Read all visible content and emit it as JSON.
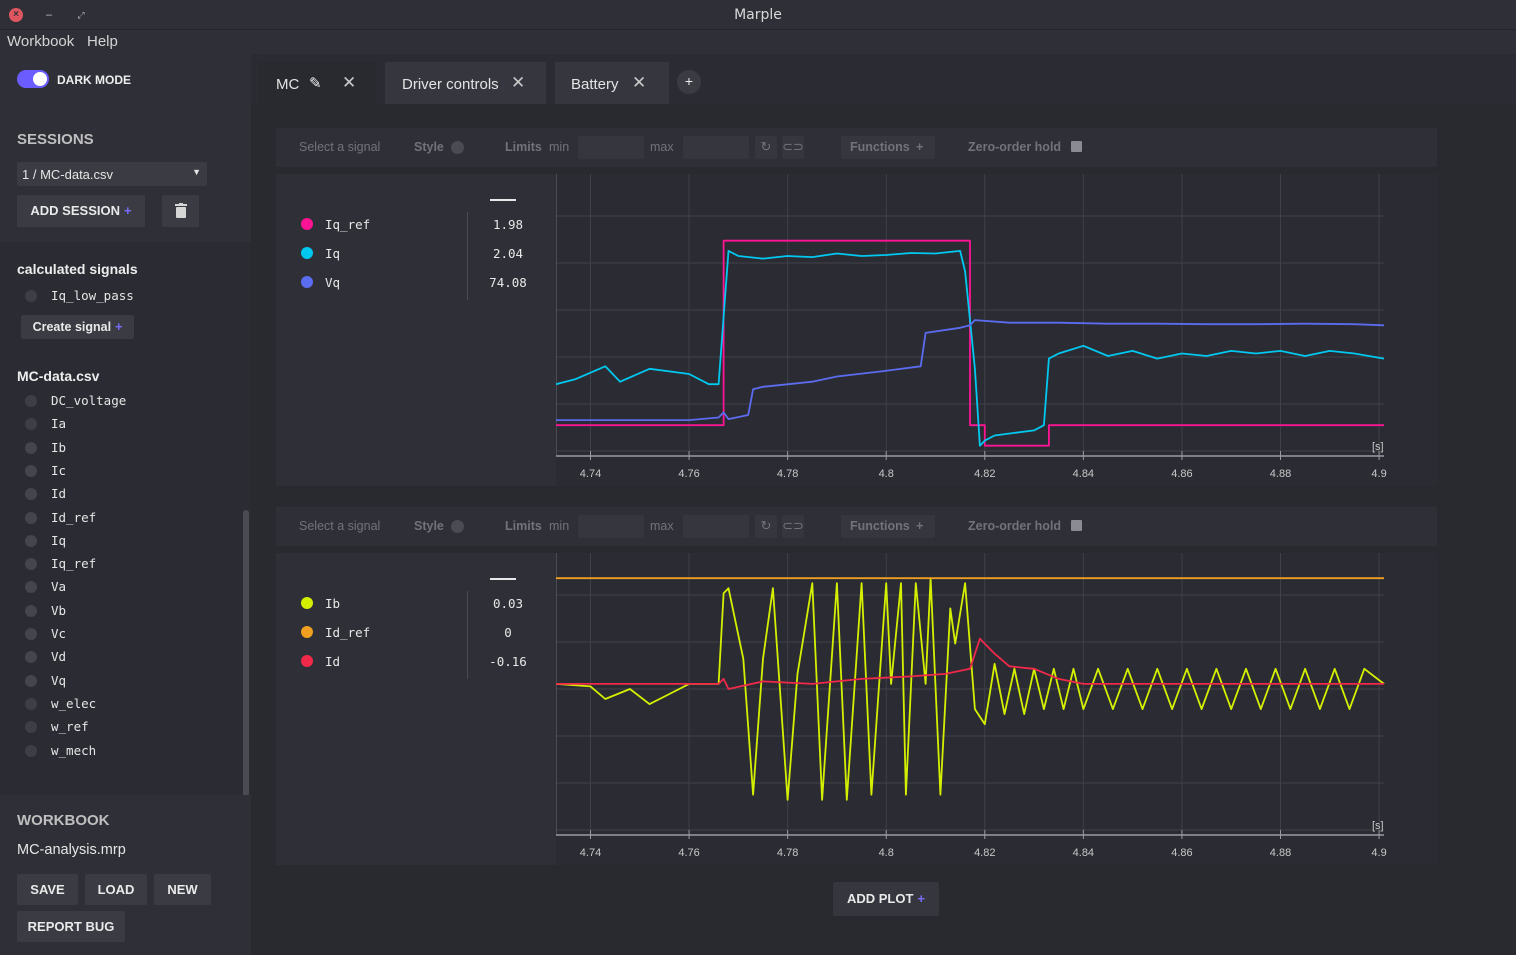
{
  "window": {
    "title": "Marple"
  },
  "menu": {
    "workbook": "Workbook",
    "help": "Help"
  },
  "sidebar": {
    "dark_mode_label": "DARK MODE",
    "sessions_title": "SESSIONS",
    "session_selected": "1 / MC-data.csv",
    "add_session": "ADD SESSION",
    "calculated_title": "calculated signals",
    "calculated_signals": [
      "Iq_low_pass"
    ],
    "create_signal": "Create signal",
    "file_title": "MC-data.csv",
    "signals": [
      "DC_voltage",
      "Ia",
      "Ib",
      "Ic",
      "Id",
      "Id_ref",
      "Iq",
      "Iq_ref",
      "Va",
      "Vb",
      "Vc",
      "Vd",
      "Vq",
      "w_elec",
      "w_ref",
      "w_mech"
    ],
    "workbook_title": "WORKBOOK",
    "workbook_file": "MC-analysis.mrp",
    "save": "SAVE",
    "load": "LOAD",
    "new": "NEW",
    "report_bug": "REPORT BUG"
  },
  "tabs": [
    {
      "label": "MC",
      "active": true
    },
    {
      "label": "Driver controls",
      "active": false
    },
    {
      "label": "Battery",
      "active": false
    }
  ],
  "toolbar": {
    "select_signal": "Select a signal",
    "style": "Style",
    "limits": "Limits",
    "min": "min",
    "max": "max",
    "functions": "Functions",
    "zoh": "Zero-order hold"
  },
  "add_plot": "ADD PLOT",
  "chart_data": [
    {
      "type": "line",
      "xlabel": "[s]",
      "xlim": [
        4.733,
        4.901
      ],
      "xticks": [
        "4.74",
        "4.76",
        "4.78",
        "4.8",
        "4.82",
        "4.84",
        "4.86",
        "4.88",
        "4.9"
      ],
      "ylim": [
        -2.1,
        3.4
      ],
      "series": [
        {
          "name": "Iq_ref",
          "color": "#ff1493",
          "current_value": "1.98",
          "x": [
            4.733,
            4.767,
            4.767,
            4.817,
            4.817,
            4.82,
            4.82,
            4.833,
            4.833,
            4.901
          ],
          "y": [
            -1.5,
            -1.5,
            2.1,
            2.1,
            -1.5,
            -1.5,
            -1.9,
            -1.9,
            -1.5,
            -1.5
          ]
        },
        {
          "name": "Iq",
          "color": "#00c8f0",
          "current_value": "2.04",
          "x": [
            4.733,
            4.737,
            4.743,
            4.746,
            4.752,
            4.756,
            4.76,
            4.764,
            4.766,
            4.768,
            4.77,
            4.775,
            4.78,
            4.785,
            4.79,
            4.795,
            4.8,
            4.805,
            4.81,
            4.815,
            4.816,
            4.818,
            4.819,
            4.82,
            4.822,
            4.826,
            4.83,
            4.832,
            4.833,
            4.835,
            4.84,
            4.845,
            4.85,
            4.855,
            4.86,
            4.865,
            4.87,
            4.875,
            4.88,
            4.885,
            4.89,
            4.895,
            4.901
          ],
          "y": [
            -0.7,
            -0.6,
            -0.35,
            -0.65,
            -0.4,
            -0.45,
            -0.5,
            -0.7,
            -0.7,
            1.9,
            1.8,
            1.75,
            1.8,
            1.78,
            1.85,
            1.8,
            1.82,
            1.86,
            1.85,
            1.9,
            1.5,
            -0.4,
            -1.9,
            -1.8,
            -1.7,
            -1.65,
            -1.6,
            -1.5,
            -0.2,
            -0.1,
            0.05,
            -0.15,
            -0.05,
            -0.2,
            -0.1,
            -0.15,
            -0.05,
            -0.1,
            -0.05,
            -0.15,
            -0.05,
            -0.1,
            -0.2
          ]
        },
        {
          "name": "Vq",
          "color": "#5b6cf0",
          "current_value": "74.08",
          "x": [
            4.733,
            4.746,
            4.76,
            4.766,
            4.767,
            4.768,
            4.772,
            4.773,
            4.775,
            4.785,
            4.79,
            4.799,
            4.807,
            4.808,
            4.815,
            4.817,
            4.818,
            4.825,
            4.835,
            4.845,
            4.855,
            4.865,
            4.875,
            4.885,
            4.895,
            4.901
          ],
          "y": [
            -1.4,
            -1.4,
            -1.4,
            -1.35,
            -1.25,
            -1.38,
            -1.3,
            -0.8,
            -0.75,
            -0.65,
            -0.55,
            -0.45,
            -0.35,
            0.3,
            0.4,
            0.45,
            0.55,
            0.5,
            0.5,
            0.48,
            0.48,
            0.47,
            0.47,
            0.48,
            0.47,
            0.45
          ]
        }
      ]
    },
    {
      "type": "line",
      "xlabel": "[s]",
      "xlim": [
        4.733,
        4.901
      ],
      "xticks": [
        "4.74",
        "4.76",
        "4.78",
        "4.8",
        "4.82",
        "4.84",
        "4.86",
        "4.88",
        "4.9"
      ],
      "ylim": [
        -3,
        2.6
      ],
      "series": [
        {
          "name": "Ib",
          "color": "#d4f000",
          "current_value": "0.03",
          "x": [
            4.733,
            4.74,
            4.743,
            4.748,
            4.752,
            4.756,
            4.76,
            4.766,
            4.767,
            4.768,
            4.771,
            4.773,
            4.775,
            4.777,
            4.78,
            4.782,
            4.785,
            4.787,
            4.79,
            4.792,
            4.795,
            4.797,
            4.8,
            4.801,
            4.803,
            4.804,
            4.806,
            4.808,
            4.809,
            4.811,
            4.813,
            4.814,
            4.816,
            4.818,
            4.82,
            4.822,
            4.824,
            4.826,
            4.828,
            4.83,
            4.832,
            4.834,
            4.836,
            4.838,
            4.84,
            4.843,
            4.846,
            4.849,
            4.852,
            4.855,
            4.858,
            4.861,
            4.864,
            4.867,
            4.87,
            4.873,
            4.876,
            4.879,
            4.882,
            4.885,
            4.888,
            4.891,
            4.894,
            4.897,
            4.901
          ],
          "y": [
            0.0,
            -0.05,
            -0.3,
            -0.1,
            -0.4,
            -0.2,
            0.0,
            0.0,
            1.8,
            1.9,
            0.5,
            -2.2,
            0.5,
            1.9,
            -2.3,
            0.2,
            2.0,
            -2.3,
            2.0,
            -2.3,
            2.0,
            -2.2,
            2.0,
            0.0,
            2.0,
            -2.2,
            2.0,
            0.0,
            2.1,
            -2.2,
            1.5,
            0.8,
            2.0,
            -0.5,
            -0.8,
            0.4,
            -0.6,
            0.3,
            -0.6,
            0.3,
            -0.5,
            0.3,
            -0.5,
            0.3,
            -0.5,
            0.3,
            -0.5,
            0.3,
            -0.5,
            0.3,
            -0.5,
            0.3,
            -0.5,
            0.3,
            -0.5,
            0.3,
            -0.5,
            0.3,
            -0.5,
            0.3,
            -0.5,
            0.3,
            -0.5,
            0.3,
            0.0
          ]
        },
        {
          "name": "Id_ref",
          "color": "#f0a020",
          "current_value": "0",
          "x": [
            4.733,
            4.901
          ],
          "y": [
            2.1,
            2.1
          ]
        },
        {
          "name": "Id",
          "color": "#f0294a",
          "current_value": "-0.16",
          "x": [
            4.733,
            4.766,
            4.767,
            4.768,
            4.775,
            4.785,
            4.795,
            4.805,
            4.812,
            4.817,
            4.819,
            4.822,
            4.825,
            4.83,
            4.835,
            4.84,
            4.85,
            4.86,
            4.87,
            4.88,
            4.89,
            4.901
          ],
          "y": [
            0.0,
            0.0,
            0.1,
            -0.1,
            0.05,
            0.0,
            0.1,
            0.15,
            0.2,
            0.3,
            0.9,
            0.6,
            0.35,
            0.3,
            0.1,
            0.0,
            0.0,
            0.0,
            0.0,
            0.0,
            0.0,
            0.0
          ]
        }
      ]
    }
  ]
}
